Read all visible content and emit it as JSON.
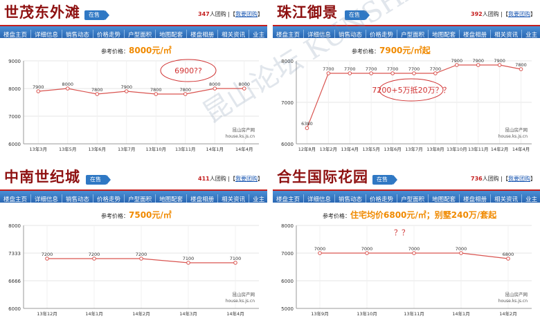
{
  "panels": [
    {
      "title": "世茂东外滩",
      "status": "在售",
      "group_count": "347",
      "group_text": "人团购 |【",
      "group_link": "我要团购",
      "group_end": "】",
      "nav": [
        "楼盘主页",
        "详细信息",
        "销售动态",
        "价格走势",
        "户型面积",
        "地图配套",
        "楼盘相册",
        "相关资讯",
        "业主"
      ],
      "ref_label": "参考价格：",
      "ref_value": "8000元/㎡",
      "source_line1": "昆山房产网",
      "source_line2": "house.ks.js.cn",
      "annotation": "6900??",
      "chart_data": {
        "type": "line",
        "categories": [
          "13年3月",
          "13年5月",
          "13年6月",
          "13年7月",
          "13年10月",
          "13年11月",
          "14年1月",
          "14年4月"
        ],
        "values": [
          7900,
          8000,
          7800,
          7900,
          7800,
          7800,
          8000,
          8000
        ],
        "y_ticks": [
          "9000",
          "8000",
          "7000",
          "6000"
        ],
        "ylim": [
          6000,
          9000
        ],
        "grid": true
      }
    },
    {
      "title": "珠江御景",
      "status": "在售",
      "group_count": "392",
      "group_text": "人团购 |【",
      "group_link": "我要团购",
      "group_end": "】",
      "nav": [
        "楼盘主页",
        "详细信息",
        "销售动态",
        "价格走势",
        "户型面积",
        "地图配套",
        "楼盘相册",
        "相关资讯",
        "业主"
      ],
      "ref_label": "参考价格：",
      "ref_value": "7900元/㎡起",
      "source_line1": "昆山房产网",
      "source_line2": "house.ks.js.cn",
      "annotation": "7200+5万抵20万？？",
      "chart_data": {
        "type": "line",
        "categories": [
          "12年8月",
          "13年2月",
          "13年4月",
          "13年5月",
          "13年6月",
          "13年7月",
          "13年8月",
          "13年10月",
          "13年11月",
          "14年2月",
          "14年4月"
        ],
        "values": [
          6380,
          7700,
          7700,
          7700,
          7700,
          7700,
          7700,
          7900,
          7900,
          7900,
          7800
        ],
        "y_ticks": [
          "8000",
          "7000",
          "6000"
        ],
        "ylim": [
          6000,
          8000
        ],
        "grid": true
      }
    },
    {
      "title": "中南世纪城",
      "status": "在售",
      "group_count": "411",
      "group_text": "人团购 |【",
      "group_link": "我要团购",
      "group_end": "】",
      "nav": [
        "楼盘主页",
        "详细信息",
        "销售动态",
        "价格走势",
        "户型面积",
        "地图配套",
        "楼盘相册",
        "相关资讯",
        "业主"
      ],
      "ref_label": "参考价格：",
      "ref_value": "7500元/㎡",
      "source_line1": "昆山房产网",
      "source_line2": "house.ks.js.cn",
      "annotation": "",
      "chart_data": {
        "type": "line",
        "categories": [
          "13年12月",
          "14年1月",
          "14年2月",
          "14年3月",
          "14年4月"
        ],
        "values": [
          7200,
          7200,
          7200,
          7100,
          7100
        ],
        "y_ticks": [
          "8000",
          "7333",
          "6666",
          "6000"
        ],
        "ylim": [
          6000,
          8000
        ],
        "grid": true
      }
    },
    {
      "title": "合生国际花园",
      "status": "在售",
      "group_count": "736",
      "group_text": "人团购 |【",
      "group_link": "我要团购",
      "group_end": "】",
      "nav": [
        "楼盘主页",
        "详细信息",
        "销售动态",
        "价格走势",
        "户型面积",
        "地图配套",
        "楼盘相册",
        "相关资讯",
        "业主"
      ],
      "ref_label": "参考价格：",
      "ref_value": "住宅均价6800元/㎡；别墅240万/套起",
      "source_line1": "昆山房产网",
      "source_line2": "house.ks.js.cn",
      "annotation": "？？",
      "chart_data": {
        "type": "line",
        "categories": [
          "13年9月",
          "13年10月",
          "13年11月",
          "14年1月",
          "14年2月"
        ],
        "values": [
          7000,
          7000,
          7000,
          7000,
          6800
        ],
        "y_ticks": [
          "8000",
          "7000",
          "6000",
          "5000"
        ],
        "ylim": [
          5000,
          8000
        ],
        "grid": true
      }
    }
  ],
  "watermark": "昆山论坛 KUNSHAN BBS"
}
